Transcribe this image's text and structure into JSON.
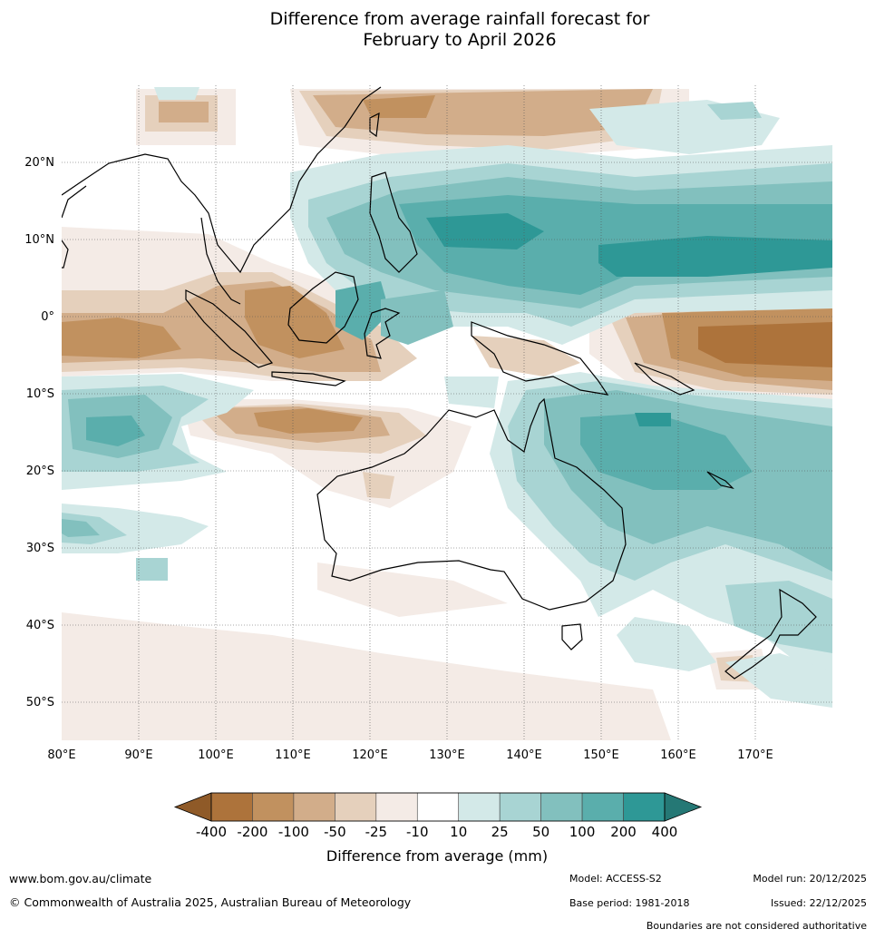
{
  "title": {
    "line1": "Difference from average rainfall forecast for",
    "line2": "February to April 2026"
  },
  "map": {
    "latitude_labels": [
      "20°N",
      "10°N",
      "0°",
      "10°S",
      "20°S",
      "30°S",
      "40°S",
      "50°S"
    ],
    "longitude_labels": [
      "80°E",
      "90°E",
      "100°E",
      "110°E",
      "120°E",
      "130°E",
      "140°E",
      "150°E",
      "160°E",
      "170°E"
    ],
    "extent": {
      "lon_min": 80,
      "lon_max": 180,
      "lat_min": -55,
      "lat_max": 30
    },
    "region": "Australia, Indonesia and the western Pacific"
  },
  "legend": {
    "title": "Difference from average (mm)",
    "ticks": [
      "-400",
      "-200",
      "-100",
      "-50",
      "-25",
      "-10",
      "10",
      "25",
      "50",
      "100",
      "200",
      "400"
    ],
    "colors": [
      "#8f5a28",
      "#ad733b",
      "#c1915f",
      "#d2ad8a",
      "#e5d0bc",
      "#f4ebe6",
      "#ffffff",
      "#d3e9e8",
      "#a8d4d3",
      "#82c0be",
      "#5aaeac",
      "#2e9896",
      "#257875"
    ]
  },
  "footer": {
    "website": "www.bom.gov.au/climate",
    "copyright": "© Commonwealth of Australia 2025, Australian Bureau of Meteorology",
    "model": "Model: ACCESS-S2",
    "base_period": "Base period: 1981-2018",
    "model_run": "Model run: 20/12/2025",
    "issued": "Issued: 22/12/2025",
    "boundaries_note": "Boundaries are not considered authoritative"
  }
}
